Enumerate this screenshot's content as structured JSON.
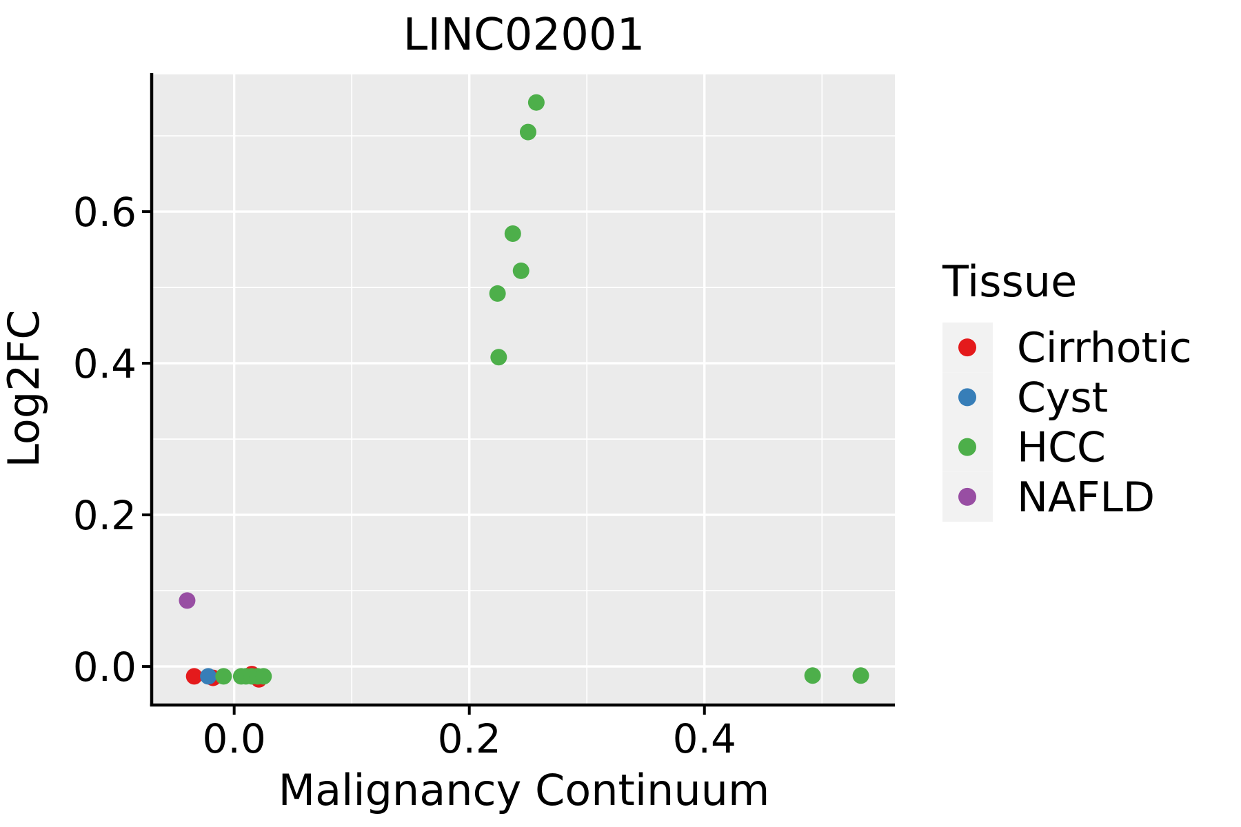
{
  "chart_data": {
    "type": "scatter",
    "title": "LINC02001",
    "xlabel": "Malignancy Continuum",
    "ylabel": "Log2FC",
    "xlim": [
      -0.069,
      0.562
    ],
    "ylim": [
      -0.049,
      0.781
    ],
    "x_major_ticks": [
      0.0,
      0.2,
      0.4
    ],
    "y_major_ticks": [
      0.0,
      0.2,
      0.4,
      0.6
    ],
    "x_minor_gridlines": [
      0.1,
      0.3,
      0.5
    ],
    "y_minor_gridlines": [
      0.1,
      0.3,
      0.5,
      0.7
    ],
    "tick_decimals": 1,
    "grid": true,
    "legend": {
      "title": "Tissue",
      "position": "right",
      "entries": [
        {
          "label": "Cirrhotic",
          "color": "#E41A1C"
        },
        {
          "label": "Cyst",
          "color": "#377EB8"
        },
        {
          "label": "HCC",
          "color": "#4DAF4A"
        },
        {
          "label": "NAFLD",
          "color": "#984EA3"
        }
      ]
    },
    "series": [
      {
        "name": "Cirrhotic",
        "color": "#E41A1C",
        "points": [
          [
            -0.034,
            -0.013
          ],
          [
            -0.018,
            -0.015
          ],
          [
            0.015,
            -0.01
          ],
          [
            0.021,
            -0.017
          ]
        ]
      },
      {
        "name": "Cyst",
        "color": "#377EB8",
        "points": [
          [
            -0.022,
            -0.013
          ]
        ]
      },
      {
        "name": "HCC",
        "color": "#4DAF4A",
        "points": [
          [
            -0.009,
            -0.013
          ],
          [
            0.006,
            -0.013
          ],
          [
            0.01,
            -0.013
          ],
          [
            0.015,
            -0.013
          ],
          [
            0.02,
            -0.013
          ],
          [
            0.025,
            -0.013
          ],
          [
            0.224,
            0.492
          ],
          [
            0.225,
            0.408
          ],
          [
            0.237,
            0.571
          ],
          [
            0.244,
            0.522
          ],
          [
            0.25,
            0.705
          ],
          [
            0.257,
            0.744
          ],
          [
            0.492,
            -0.012
          ],
          [
            0.533,
            -0.012
          ]
        ]
      },
      {
        "name": "NAFLD",
        "color": "#984EA3",
        "points": [
          [
            -0.04,
            0.087
          ]
        ]
      }
    ],
    "style": {
      "panel_bg": "#EBEBEB",
      "grid_color": "#FFFFFF",
      "legend_key_bg": "#F2F2F2",
      "spine_color": "#000000",
      "text_color": "#000000"
    }
  }
}
